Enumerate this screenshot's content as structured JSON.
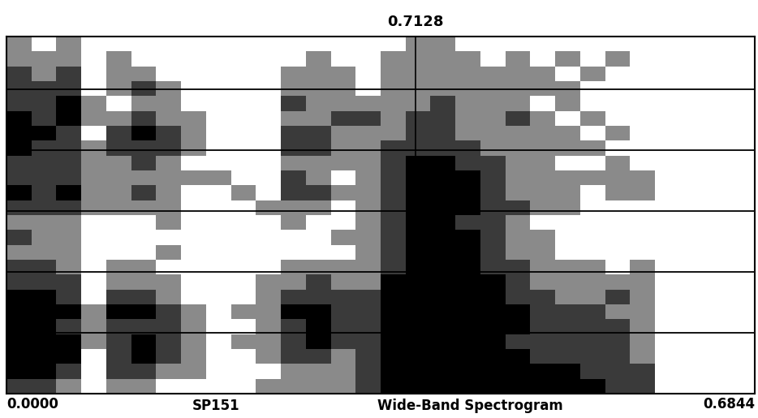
{
  "chart_data": {
    "type": "spectrogram",
    "title": "0.7128",
    "annotations": [
      "SP151",
      "Wide-Band Spectrogram"
    ],
    "xlim": [
      0,
      0.6844
    ],
    "xticks": [
      {
        "value": 0,
        "label": "0.0000"
      },
      {
        "value": 0.6844,
        "label": "0.6844"
      }
    ],
    "ylim": [
      0,
      5.87
    ],
    "yticks": [
      0,
      1,
      2,
      3,
      4,
      5
    ],
    "grid": true,
    "tick_labels": "x",
    "cursor": 0.374,
    "color": "#000000",
    "cells": [
      [
        2,
        2,
        1,
        0,
        1,
        1,
        0,
        0,
        0,
        0,
        1,
        1,
        1,
        1,
        2,
        3,
        3,
        3,
        3,
        3,
        3,
        3,
        3,
        3,
        2,
        2,
        0,
        0,
        0,
        0
      ],
      [
        3,
        3,
        2,
        0,
        2,
        2,
        1,
        1,
        0,
        0,
        0,
        1,
        1,
        1,
        2,
        3,
        3,
        3,
        3,
        3,
        3,
        3,
        3,
        2,
        2,
        2,
        0,
        0,
        0,
        0
      ],
      [
        3,
        3,
        3,
        0,
        2,
        3,
        2,
        1,
        0,
        0,
        1,
        2,
        2,
        1,
        2,
        3,
        3,
        3,
        3,
        3,
        3,
        2,
        2,
        2,
        2,
        1,
        0,
        0,
        0,
        0
      ],
      [
        3,
        3,
        3,
        1,
        2,
        3,
        2,
        1,
        0,
        1,
        1,
        2,
        3,
        2,
        2,
        3,
        3,
        3,
        3,
        3,
        2,
        2,
        2,
        2,
        2,
        1,
        0,
        0,
        0,
        0
      ],
      [
        3,
        3,
        2,
        1,
        2,
        2,
        2,
        1,
        0,
        0,
        1,
        2,
        3,
        2,
        2,
        3,
        3,
        3,
        3,
        3,
        3,
        2,
        2,
        2,
        2,
        1,
        0,
        0,
        0,
        0
      ],
      [
        3,
        3,
        3,
        1,
        3,
        3,
        2,
        1,
        0,
        1,
        1,
        3,
        3,
        2,
        2,
        3,
        3,
        3,
        3,
        3,
        3,
        2,
        2,
        2,
        1,
        1,
        0,
        0,
        0,
        0
      ],
      [
        3,
        3,
        2,
        0,
        2,
        2,
        1,
        0,
        0,
        0,
        1,
        2,
        2,
        2,
        2,
        3,
        3,
        3,
        3,
        3,
        2,
        2,
        1,
        1,
        2,
        1,
        0,
        0,
        0,
        0
      ],
      [
        2,
        2,
        2,
        0,
        1,
        1,
        1,
        0,
        0,
        0,
        1,
        1,
        2,
        1,
        1,
        3,
        3,
        3,
        3,
        3,
        2,
        1,
        1,
        1,
        1,
        1,
        0,
        0,
        0,
        0
      ],
      [
        2,
        2,
        1,
        0,
        1,
        1,
        0,
        0,
        0,
        0,
        0,
        1,
        1,
        1,
        1,
        2,
        3,
        3,
        3,
        2,
        2,
        1,
        1,
        1,
        0,
        1,
        0,
        0,
        0,
        0
      ],
      [
        1,
        1,
        1,
        0,
        0,
        0,
        1,
        0,
        0,
        0,
        0,
        0,
        0,
        0,
        1,
        2,
        3,
        3,
        3,
        2,
        1,
        1,
        0,
        0,
        0,
        0,
        0,
        0,
        0,
        0
      ],
      [
        2,
        1,
        1,
        0,
        0,
        0,
        0,
        0,
        0,
        0,
        0,
        0,
        0,
        1,
        1,
        2,
        3,
        3,
        3,
        2,
        1,
        1,
        0,
        0,
        0,
        0,
        0,
        0,
        0,
        0
      ],
      [
        1,
        1,
        1,
        0,
        0,
        0,
        1,
        0,
        0,
        0,
        0,
        1,
        0,
        0,
        1,
        2,
        3,
        3,
        2,
        2,
        1,
        0,
        0,
        0,
        0,
        0,
        0,
        0,
        0,
        0
      ],
      [
        2,
        2,
        2,
        1,
        1,
        1,
        1,
        0,
        0,
        0,
        1,
        1,
        1,
        0,
        1,
        2,
        3,
        3,
        3,
        2,
        2,
        1,
        1,
        0,
        0,
        0,
        0,
        0,
        0,
        0
      ],
      [
        3,
        2,
        3,
        1,
        1,
        2,
        1,
        0,
        0,
        1,
        0,
        2,
        2,
        1,
        1,
        2,
        3,
        3,
        3,
        2,
        1,
        1,
        1,
        0,
        1,
        1,
        0,
        0,
        0,
        0
      ],
      [
        2,
        2,
        2,
        1,
        1,
        1,
        1,
        1,
        1,
        0,
        0,
        2,
        1,
        0,
        1,
        2,
        3,
        3,
        3,
        2,
        1,
        1,
        1,
        1,
        1,
        1,
        0,
        0,
        0,
        0
      ],
      [
        2,
        2,
        2,
        1,
        1,
        2,
        1,
        0,
        0,
        0,
        0,
        1,
        1,
        1,
        1,
        2,
        3,
        3,
        2,
        2,
        1,
        1,
        0,
        0,
        1,
        0,
        0,
        0,
        0,
        0
      ],
      [
        3,
        2,
        2,
        1,
        2,
        2,
        2,
        1,
        0,
        0,
        0,
        2,
        2,
        1,
        1,
        2,
        2,
        2,
        2,
        1,
        1,
        1,
        1,
        1,
        0,
        0,
        0,
        0,
        0,
        0
      ],
      [
        3,
        3,
        2,
        0,
        2,
        3,
        2,
        1,
        0,
        0,
        0,
        2,
        2,
        1,
        1,
        1,
        2,
        2,
        1,
        1,
        1,
        1,
        1,
        0,
        1,
        0,
        0,
        0,
        0,
        0
      ],
      [
        3,
        2,
        3,
        1,
        1,
        2,
        1,
        1,
        0,
        0,
        0,
        1,
        1,
        2,
        2,
        1,
        2,
        2,
        1,
        1,
        2,
        1,
        0,
        1,
        0,
        0,
        0,
        0,
        0,
        0
      ],
      [
        2,
        2,
        3,
        1,
        0,
        1,
        1,
        0,
        0,
        0,
        0,
        2,
        1,
        1,
        1,
        1,
        1,
        2,
        1,
        1,
        1,
        0,
        1,
        0,
        0,
        0,
        0,
        0,
        0,
        0
      ],
      [
        2,
        2,
        2,
        0,
        1,
        2,
        1,
        0,
        0,
        0,
        0,
        1,
        1,
        1,
        0,
        1,
        1,
        1,
        1,
        1,
        1,
        1,
        1,
        0,
        0,
        0,
        0,
        0,
        0,
        0
      ],
      [
        2,
        1,
        2,
        0,
        1,
        1,
        0,
        0,
        0,
        0,
        0,
        1,
        1,
        1,
        0,
        1,
        1,
        1,
        1,
        1,
        1,
        1,
        0,
        1,
        0,
        0,
        0,
        0,
        0,
        0
      ],
      [
        1,
        1,
        1,
        0,
        1,
        0,
        0,
        0,
        0,
        0,
        0,
        0,
        1,
        0,
        0,
        1,
        1,
        1,
        1,
        0,
        1,
        0,
        1,
        0,
        1,
        0,
        0,
        0,
        0,
        0
      ],
      [
        1,
        0,
        1,
        0,
        0,
        0,
        0,
        0,
        0,
        0,
        0,
        0,
        0,
        0,
        0,
        0,
        1,
        1,
        0,
        0,
        0,
        0,
        0,
        0,
        0,
        0,
        0,
        0,
        0,
        0
      ]
    ]
  }
}
